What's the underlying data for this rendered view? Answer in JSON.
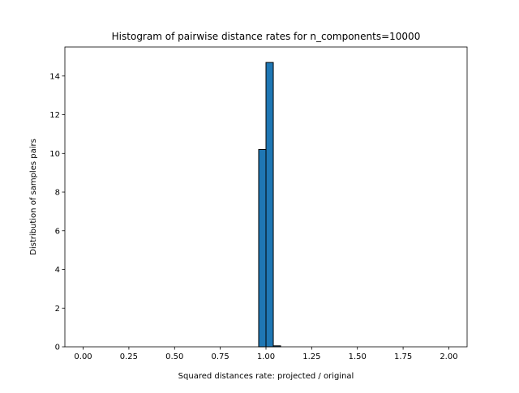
{
  "chart_data": {
    "type": "bar",
    "title": "Histogram of pairwise distance rates for n_components=10000",
    "xlabel": "Squared distances rate: projected / original",
    "ylabel": "Distribution of samples pairs",
    "xlim": [
      -0.1,
      2.1
    ],
    "ylim": [
      0,
      15.5
    ],
    "xticks": [
      0.0,
      0.25,
      0.5,
      0.75,
      1.0,
      1.25,
      1.5,
      1.75,
      2.0
    ],
    "xtick_labels": [
      "0.00",
      "0.25",
      "0.50",
      "0.75",
      "1.00",
      "1.25",
      "1.50",
      "1.75",
      "2.00"
    ],
    "yticks": [
      0,
      2,
      4,
      6,
      8,
      10,
      12,
      14
    ],
    "ytick_labels": [
      "0",
      "2",
      "4",
      "6",
      "8",
      "10",
      "12",
      "14"
    ],
    "bin_range": [
      0,
      2
    ],
    "n_bins": 50,
    "bins": [
      {
        "x0": 0.96,
        "x1": 1.0,
        "value": 10.2
      },
      {
        "x0": 1.0,
        "x1": 1.04,
        "value": 14.7
      },
      {
        "x0": 1.04,
        "x1": 1.08,
        "value": 0.05
      }
    ],
    "bar_color": "#1f77b4",
    "edge_color": "#000000",
    "grid": false,
    "legend": "none"
  }
}
